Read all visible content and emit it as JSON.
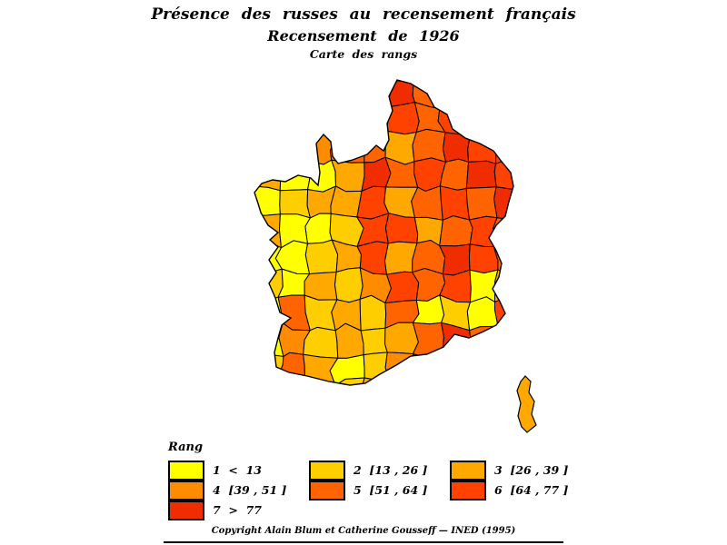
{
  "title": {
    "line1": "Présence des russes au recensement français",
    "line2": "Recensement de 1926",
    "line3": "Carte des rangs"
  },
  "legend": {
    "title": "Rang",
    "entries": [
      {
        "rank": 1,
        "label": "1  <  13",
        "color": "#FFFF00"
      },
      {
        "rank": 2,
        "label": "2  [13 , 26 ]",
        "color": "#FFCE00"
      },
      {
        "rank": 3,
        "label": "3  [26 , 39 ]",
        "color": "#FFA800"
      },
      {
        "rank": 4,
        "label": "4  [39 , 51 ]",
        "color": "#FF8C00"
      },
      {
        "rank": 5,
        "label": "5  [51 , 64 ]",
        "color": "#FF6400"
      },
      {
        "rank": 6,
        "label": "6  [64 , 77 ]",
        "color": "#FF4200"
      },
      {
        "rank": 7,
        "label": "7  >  77",
        "color": "#F02D00"
      }
    ]
  },
  "footer": {
    "copyright": "Copyright Alain Blum et Catherine Gousseff  —  INED (1995)"
  },
  "chart_data": {
    "type": "choropleth",
    "title": "Présence des russes au recensement français",
    "subtitle": "Recensement de 1926",
    "map_label": "Carte des rangs",
    "region": "France, départements (with Corsica)",
    "variable": "Rang (rank of Russian presence, 1 = lowest to 7 = highest)",
    "classes": [
      {
        "rank": 1,
        "range": [
          null,
          13
        ],
        "label": "1  <  13",
        "color": "#FFFF00"
      },
      {
        "rank": 2,
        "range": [
          13,
          26
        ],
        "label": "2  [13 , 26 ]",
        "color": "#FFCE00"
      },
      {
        "rank": 3,
        "range": [
          26,
          39
        ],
        "label": "3  [26 , 39 ]",
        "color": "#FFA800"
      },
      {
        "rank": 4,
        "range": [
          39,
          51
        ],
        "label": "4  [39 , 51 ]",
        "color": "#FF8C00"
      },
      {
        "rank": 5,
        "range": [
          51,
          64
        ],
        "label": "5  [51 , 64 ]",
        "color": "#FF6400"
      },
      {
        "rank": 6,
        "range": [
          64,
          77
        ],
        "label": "6  [64 , 77 ]",
        "color": "#FF4200"
      },
      {
        "rank": 7,
        "range": [
          77,
          null
        ],
        "label": "7  >  77",
        "color": "#F02D00"
      }
    ],
    "legend_position": "bottom-left",
    "notes": "Yellow (low ranks) concentrated in Brittany / west / southwest interior; red (high ranks) in the north, Paris basin, northeast and southeast coast.",
    "rank_grid": [
      [
        3,
        3,
        3,
        5,
        6,
        7,
        5,
        5,
        5,
        5
      ],
      [
        3,
        3,
        2,
        2,
        5,
        6,
        5,
        6,
        6,
        5
      ],
      [
        3,
        6,
        4,
        5,
        5,
        3,
        5,
        7,
        6,
        6
      ],
      [
        3,
        1,
        1,
        3,
        7,
        5,
        6,
        5,
        7,
        6
      ],
      [
        1,
        2,
        3,
        3,
        6,
        3,
        5,
        6,
        5,
        7
      ],
      [
        3,
        1,
        1,
        2,
        6,
        6,
        3,
        5,
        6,
        5
      ],
      [
        1,
        1,
        2,
        3,
        6,
        3,
        5,
        7,
        6,
        5
      ],
      [
        2,
        1,
        3,
        2,
        4,
        6,
        5,
        6,
        1,
        3
      ],
      [
        1,
        5,
        2,
        3,
        2,
        5,
        1,
        2,
        1,
        6
      ],
      [
        1,
        4,
        2,
        3,
        2,
        3,
        5,
        7,
        5,
        3
      ],
      [
        2,
        5,
        3,
        1,
        2,
        4,
        5,
        3,
        5,
        5
      ],
      [
        3,
        3,
        5,
        2,
        3,
        3,
        3,
        5,
        3,
        3
      ]
    ],
    "corsica_rank": 3
  }
}
